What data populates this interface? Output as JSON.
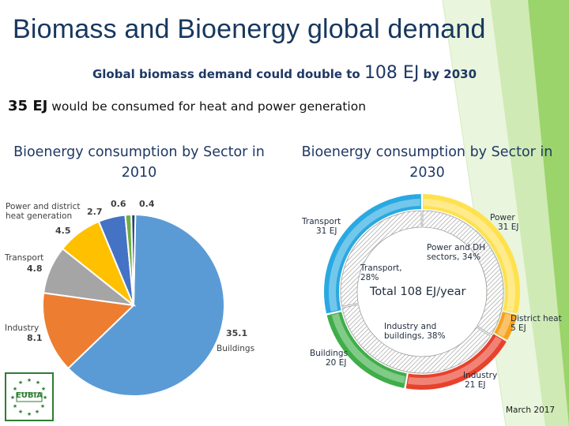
{
  "slide": {
    "title": "Biomass and Bioenergy global demand",
    "subtitle_pre": "Global biomass demand could double to ",
    "subtitle_value": "108 EJ",
    "subtitle_post": " by 2030",
    "line2_value": "35 EJ",
    "line2_text": " would be consumed for heat and power generation",
    "date": "March 2017",
    "logo_text": "EUBIA",
    "accent_color": "#17375e",
    "theme_green": "#92d050"
  },
  "chart_data": [
    {
      "type": "pie",
      "title": "Bioenergy consumption by Sector in 2010",
      "slices": [
        {
          "label": "Buildings",
          "value": 35.1,
          "color": "#5b9bd5"
        },
        {
          "label": "Industry",
          "value": 8.1,
          "color": "#ed7d31"
        },
        {
          "label": "Transport",
          "value": 4.8,
          "color": "#a5a5a5"
        },
        {
          "label": "Power and district heat generation",
          "value": 4.5,
          "color": "#ffc000"
        },
        {
          "label": "",
          "value": 2.7,
          "color": "#4472c4"
        },
        {
          "label": "",
          "value": 0.6,
          "color": "#70ad47"
        },
        {
          "label": "",
          "value": 0.4,
          "color": "#264478"
        }
      ],
      "value_labels": [
        "35.1",
        "8.1",
        "4.8",
        "4.5",
        "2.7",
        "0.6",
        "0.4"
      ],
      "category_labels": {
        "buildings": "Buildings",
        "industry": "Industry",
        "transport": "Transport",
        "power_line1": "Power and district",
        "power_line2": "heat generation"
      }
    },
    {
      "type": "pie",
      "title": "Bioenergy consumption by Sector in 2030",
      "outer_ring": [
        {
          "label": "Power",
          "value": 31,
          "unit": "EJ",
          "color": "#ffe14d"
        },
        {
          "label": "District heat",
          "value": 5,
          "unit": "EJ",
          "color": "#f7a21b"
        },
        {
          "label": "Industry",
          "value": 21,
          "unit": "EJ",
          "color": "#e8412c"
        },
        {
          "label": "Buildings",
          "value": 20,
          "unit": "EJ",
          "color": "#3fae49"
        },
        {
          "label": "Transport",
          "value": 31,
          "unit": "EJ",
          "color": "#29a9e1"
        }
      ],
      "inner_ring": [
        {
          "label": "Power and DH sectors, 34%",
          "percent": 34,
          "color": "#b9b9b9"
        },
        {
          "label": "Industry and buildings, 38%",
          "percent": 38,
          "color": "#d9d9d9"
        },
        {
          "label": "Transport, 28%",
          "percent": 28,
          "color": "#cfcfcf"
        }
      ],
      "center_text": "Total 108 EJ/year",
      "labels": {
        "power": "Power",
        "power_val": "31 EJ",
        "district_heat": "District heat",
        "district_heat_val": "5 EJ",
        "industry": "Industry",
        "industry_val": "21 EJ",
        "buildings": "Buildings",
        "buildings_val": "20 EJ",
        "transport": "Transport",
        "transport_val": "31 EJ",
        "inner_power_1": "Power and DH",
        "inner_power_2": "sectors, 34%",
        "inner_transport_1": "Transport,",
        "inner_transport_2": "28%",
        "inner_industry_1": "Industry and",
        "inner_industry_2": "buildings, 38%"
      }
    }
  ]
}
